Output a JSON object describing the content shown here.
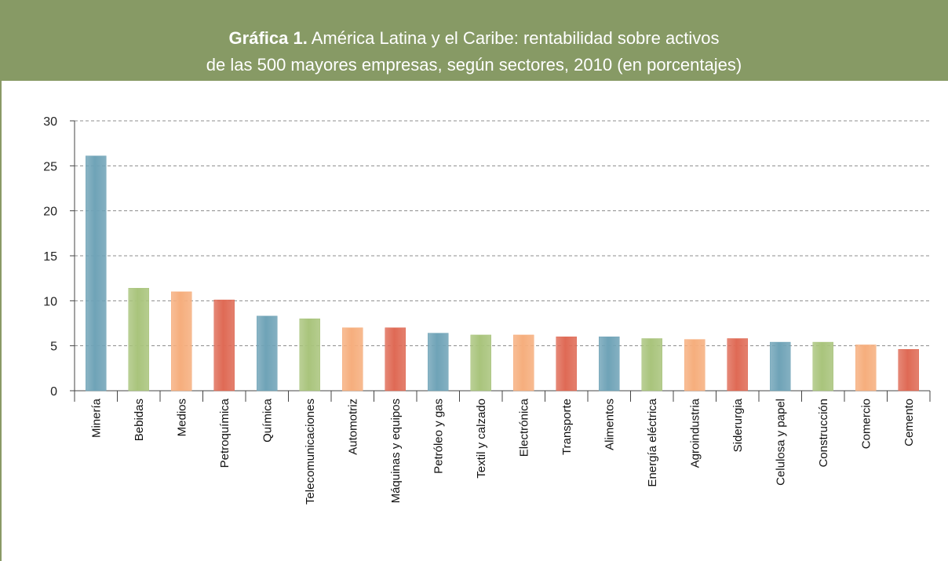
{
  "title": {
    "bold": "Gráfica 1.",
    "line1": "América Latina y el Caribe: rentabilidad sobre activos",
    "line2": "de las 500 mayores empresas, según sectores, 2010 (en porcentajes)"
  },
  "colors": {
    "header_bg": "#879a65",
    "series": [
      "#6fa3b7",
      "#a9c47c",
      "#f6ae7d",
      "#df6a55"
    ]
  },
  "chart_data": {
    "type": "bar",
    "title": "Gráfica 1. América Latina y el Caribe: rentabilidad sobre activos de las 500 mayores empresas, según sectores, 2010 (en porcentajes)",
    "xlabel": "",
    "ylabel": "",
    "ylim": [
      0,
      30
    ],
    "yticks": [
      0,
      5,
      10,
      15,
      20,
      25,
      30
    ],
    "grid": true,
    "categories": [
      "Minería",
      "Bebidas",
      "Medios",
      "Petroquímica",
      "Química",
      "Telecomunicaciones",
      "Automotriz",
      "Máquinas y equipos",
      "Petróleo y gas",
      "Textil y calzado",
      "Electrónica",
      "Transporte",
      "Alimentos",
      "Energía eléctrica",
      "Agroindustria",
      "Siderurgia",
      "Celulosa y papel",
      "Construcción",
      "Comercio",
      "Cemento"
    ],
    "values": [
      26.1,
      11.4,
      11.0,
      10.1,
      8.3,
      8.0,
      7.0,
      7.0,
      6.4,
      6.2,
      6.2,
      6.0,
      6.0,
      5.8,
      5.7,
      5.8,
      5.4,
      5.4,
      5.1,
      4.6
    ]
  }
}
